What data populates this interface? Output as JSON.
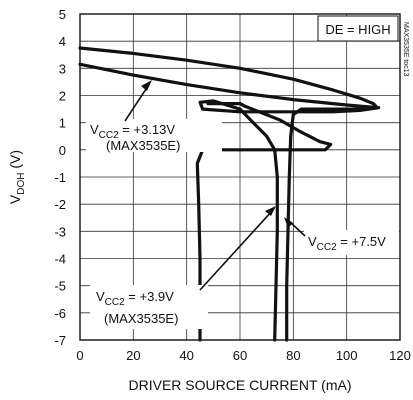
{
  "chart_data": {
    "type": "line",
    "xlabel": "DRIVER SOURCE CURRENT (mA)",
    "ylabel": "V",
    "ylabel_sub": "DOH",
    "ylabel_unit": " (V)",
    "xlim": [
      0,
      120
    ],
    "ylim": [
      -7,
      5
    ],
    "xticks": [
      "0",
      "20",
      "40",
      "60",
      "80",
      "100",
      "120"
    ],
    "yticks": [
      "5",
      "4",
      "3",
      "2",
      "1",
      "0",
      "-1",
      "-2",
      "-3",
      "-4",
      "-5",
      "-6",
      "-7"
    ],
    "grid": true,
    "annotation_box": "DE = HIGH",
    "series": [
      {
        "name": "VCC2 = +7.5V",
        "points": [
          [
            0,
            3.75
          ],
          [
            20,
            3.55
          ],
          [
            40,
            3.3
          ],
          [
            60,
            3.0
          ],
          [
            80,
            2.6
          ],
          [
            95,
            2.2
          ],
          [
            105,
            1.9
          ],
          [
            110,
            1.7
          ],
          [
            111,
            1.6
          ],
          [
            108,
            1.5
          ],
          [
            95,
            1.5
          ],
          [
            83,
            1.5
          ],
          [
            80,
            1.3
          ],
          [
            79,
            0.5
          ],
          [
            78.5,
            -1
          ],
          [
            78,
            -3
          ],
          [
            77.5,
            -5
          ],
          [
            77.5,
            -7
          ]
        ]
      },
      {
        "name": "VCC2 = +3.13V (MAX3535E)",
        "points": [
          [
            0,
            3.15
          ],
          [
            20,
            2.75
          ],
          [
            40,
            2.4
          ],
          [
            60,
            2.1
          ],
          [
            80,
            1.85
          ],
          [
            100,
            1.65
          ],
          [
            112,
            1.55
          ],
          [
            105,
            1.45
          ],
          [
            95,
            1.4
          ],
          [
            82,
            1.4
          ],
          [
            70,
            1.4
          ],
          [
            60,
            1.4
          ],
          [
            46,
            1.5
          ],
          [
            45,
            1.75
          ],
          [
            50,
            1.8
          ],
          [
            60,
            1.5
          ],
          [
            65,
            1.0
          ],
          [
            70,
            0.5
          ],
          [
            73,
            0
          ],
          [
            74,
            -1
          ],
          [
            74,
            -3
          ],
          [
            73.5,
            -5
          ],
          [
            73,
            -7
          ]
        ]
      },
      {
        "name": "VCC2 = +3.9V (MAX3535E)",
        "points": [
          [
            48,
            1.7
          ],
          [
            60,
            1.7
          ],
          [
            62,
            1.6
          ],
          [
            75,
            1.1
          ],
          [
            82,
            0.7
          ],
          [
            90,
            0.3
          ],
          [
            94,
            0.2
          ],
          [
            92,
            0
          ],
          [
            85,
            0
          ],
          [
            70,
            0
          ],
          [
            46,
            0
          ],
          [
            44,
            -0.5
          ],
          [
            44.5,
            -2
          ],
          [
            45,
            -4
          ],
          [
            45,
            -7
          ]
        ]
      }
    ],
    "labels": [
      {
        "text": "V",
        "sub": "CC2",
        "rest": " = +3.13V"
      },
      {
        "text": "(MAX3535E)"
      },
      {
        "text": "V",
        "sub": "CC2",
        "rest": " = +3.9V"
      },
      {
        "text": "(MAX3535E)"
      },
      {
        "text": "V",
        "sub": "CC2",
        "rest": " = +7.5V"
      }
    ]
  },
  "watermark": "MAX3535E toc13"
}
